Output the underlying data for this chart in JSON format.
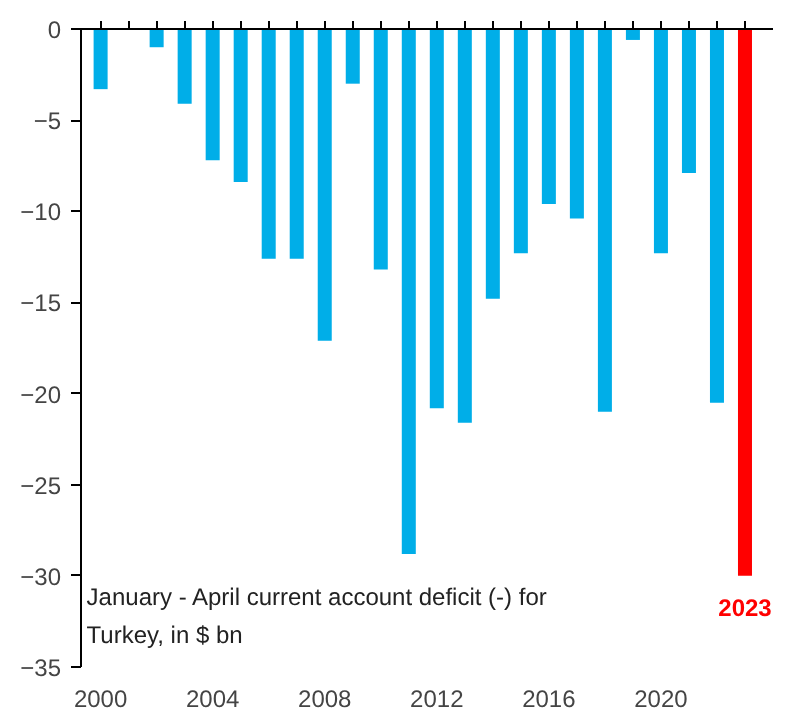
{
  "chart_data": {
    "type": "bar",
    "x": [
      2000,
      2001,
      2002,
      2003,
      2004,
      2005,
      2006,
      2007,
      2008,
      2009,
      2010,
      2011,
      2012,
      2013,
      2014,
      2015,
      2016,
      2017,
      2018,
      2019,
      2020,
      2021,
      2022,
      2023
    ],
    "values": [
      -3.3,
      null,
      -1.0,
      -4.1,
      -7.2,
      -8.4,
      -12.6,
      -12.6,
      -17.1,
      -3.0,
      -13.2,
      -28.8,
      -20.8,
      -21.6,
      -14.8,
      -12.3,
      -9.6,
      -10.4,
      -21.0,
      -0.6,
      -12.3,
      -7.9,
      -20.5,
      -30.0
    ],
    "colors": [
      "#00aee8",
      "#00aee8",
      "#00aee8",
      "#00aee8",
      "#00aee8",
      "#00aee8",
      "#00aee8",
      "#00aee8",
      "#00aee8",
      "#00aee8",
      "#00aee8",
      "#00aee8",
      "#00aee8",
      "#00aee8",
      "#00aee8",
      "#00aee8",
      "#00aee8",
      "#00aee8",
      "#00aee8",
      "#00aee8",
      "#00aee8",
      "#00aee8",
      "#00aee8",
      "#ff0000"
    ],
    "xlim": [
      1999.3,
      2024.0
    ],
    "xticks": [
      2000,
      2004,
      2008,
      2012,
      2016,
      2020
    ],
    "ylim": [
      -35,
      0
    ],
    "yticks": [
      0,
      -5,
      -10,
      -15,
      -20,
      -25,
      -30,
      -35
    ],
    "grid": false,
    "annotations": [
      "January - April current account deficit (-) for\nTurkey, in $ bn",
      "2023"
    ]
  }
}
